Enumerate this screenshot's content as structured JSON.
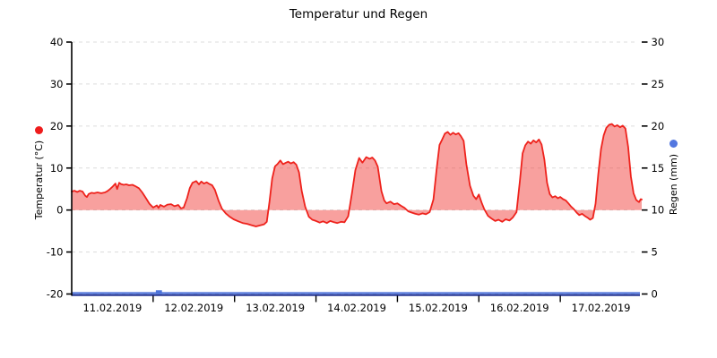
{
  "title": "Temperatur und Regen",
  "chart_data": {
    "type": "area",
    "title": "Temperatur und Regen",
    "background": "#ffffff",
    "grid_color": "#dcdcdc",
    "axis_color": "#000000",
    "x_axis": {
      "unit": "hours since 11.02.2019 00:00",
      "range_hours": [
        0,
        168
      ],
      "days": 7,
      "day_labels": [
        "11.02.2019",
        "12.02.2019",
        "13.02.2019",
        "14.02.2019",
        "15.02.2019",
        "16.02.2019",
        "17.02.2019"
      ]
    },
    "y_left": {
      "label": "Temperatur (°C)",
      "min": -20,
      "max": 40,
      "ticks": [
        40,
        30,
        20,
        10,
        0,
        -10,
        -20
      ],
      "marker_color": "#ee1c1c"
    },
    "y_right": {
      "label": "Regen (mm)",
      "min": 0,
      "max": 30,
      "ticks": [
        30,
        25,
        20,
        15,
        10,
        5,
        0
      ],
      "marker_color": "#5377e0"
    },
    "series": [
      {
        "name": "Temperatur",
        "axis": "left",
        "render": "area-line",
        "line_color": "#ee221c",
        "fill_color": "rgba(240,45,40,0.45)",
        "baseline_value": 0,
        "points": [
          [
            0,
            4.4
          ],
          [
            0.8,
            4.6
          ],
          [
            1.6,
            4.3
          ],
          [
            2.4,
            4.6
          ],
          [
            3.2,
            4.4
          ],
          [
            4,
            3.4
          ],
          [
            4.5,
            3.1
          ],
          [
            5,
            3.8
          ],
          [
            5.8,
            4.1
          ],
          [
            6.6,
            4
          ],
          [
            7.6,
            4.2
          ],
          [
            8.7,
            4
          ],
          [
            9.8,
            4.2
          ],
          [
            10.5,
            4.5
          ],
          [
            11.3,
            5
          ],
          [
            12.1,
            5.6
          ],
          [
            12.9,
            6.3
          ],
          [
            13.4,
            5
          ],
          [
            14,
            6.5
          ],
          [
            14.5,
            6.2
          ],
          [
            15.3,
            6
          ],
          [
            16.1,
            6.1
          ],
          [
            16.9,
            5.9
          ],
          [
            17.9,
            6
          ],
          [
            18.7,
            5.7
          ],
          [
            19.8,
            5.2
          ],
          [
            20.8,
            4.2
          ],
          [
            21.9,
            2.8
          ],
          [
            22.9,
            1.5
          ],
          [
            24,
            0.6
          ],
          [
            25.1,
            1.1
          ],
          [
            25.6,
            0.5
          ],
          [
            26.1,
            1.2
          ],
          [
            27.2,
            0.8
          ],
          [
            28.2,
            1.3
          ],
          [
            29.3,
            1.4
          ],
          [
            30.3,
            0.9
          ],
          [
            31.4,
            1.2
          ],
          [
            32.2,
            0.4
          ],
          [
            33,
            0.6
          ],
          [
            34,
            2.8
          ],
          [
            34.8,
            5.2
          ],
          [
            35.6,
            6.5
          ],
          [
            36.7,
            6.9
          ],
          [
            37.5,
            6.1
          ],
          [
            38.2,
            6.8
          ],
          [
            39,
            6.3
          ],
          [
            39.8,
            6.6
          ],
          [
            40.6,
            6.2
          ],
          [
            41.4,
            5.9
          ],
          [
            42.2,
            4.8
          ],
          [
            43.3,
            2.2
          ],
          [
            44.3,
            0.3
          ],
          [
            45.4,
            -0.8
          ],
          [
            46.4,
            -1.5
          ],
          [
            47.7,
            -2.2
          ],
          [
            49.1,
            -2.7
          ],
          [
            50.4,
            -3.1
          ],
          [
            51.7,
            -3.3
          ],
          [
            53,
            -3.6
          ],
          [
            54.3,
            -3.9
          ],
          [
            55.7,
            -3.6
          ],
          [
            56.7,
            -3.4
          ],
          [
            57.5,
            -2.8
          ],
          [
            58.3,
            2
          ],
          [
            59.1,
            7.5
          ],
          [
            59.9,
            10.4
          ],
          [
            60.7,
            11
          ],
          [
            61.5,
            11.8
          ],
          [
            62.3,
            10.9
          ],
          [
            63,
            11.2
          ],
          [
            63.8,
            11.5
          ],
          [
            64.6,
            11.1
          ],
          [
            65.4,
            11.4
          ],
          [
            66.2,
            10.8
          ],
          [
            67,
            9
          ],
          [
            67.8,
            4.5
          ],
          [
            68.8,
            0.8
          ],
          [
            69.9,
            -1.6
          ],
          [
            70.9,
            -2.3
          ],
          [
            72,
            -2.6
          ],
          [
            73.1,
            -3
          ],
          [
            74.1,
            -2.7
          ],
          [
            75.2,
            -3.1
          ],
          [
            76.2,
            -2.6
          ],
          [
            77.3,
            -2.9
          ],
          [
            78.3,
            -3.1
          ],
          [
            79.4,
            -2.8
          ],
          [
            80.4,
            -2.9
          ],
          [
            81.5,
            -1.5
          ],
          [
            82.6,
            4
          ],
          [
            83.6,
            9.5
          ],
          [
            84.7,
            12.4
          ],
          [
            85.7,
            11.3
          ],
          [
            86.8,
            12.6
          ],
          [
            87.8,
            12.2
          ],
          [
            88.6,
            12.5
          ],
          [
            89.4,
            11.8
          ],
          [
            90.2,
            10.3
          ],
          [
            91.3,
            4.5
          ],
          [
            92.1,
            2.3
          ],
          [
            92.8,
            1.6
          ],
          [
            93.9,
            2
          ],
          [
            95,
            1.4
          ],
          [
            96,
            1.6
          ],
          [
            97.1,
            1
          ],
          [
            98.1,
            0.5
          ],
          [
            99.2,
            -0.3
          ],
          [
            100.2,
            -0.6
          ],
          [
            101.3,
            -0.9
          ],
          [
            102.3,
            -1.1
          ],
          [
            103.4,
            -0.8
          ],
          [
            104.4,
            -1
          ],
          [
            105.5,
            -0.5
          ],
          [
            106.6,
            2.5
          ],
          [
            107.6,
            10
          ],
          [
            108.4,
            15.5
          ],
          [
            109.2,
            16.8
          ],
          [
            110,
            18.2
          ],
          [
            110.8,
            18.6
          ],
          [
            111.6,
            17.9
          ],
          [
            112.4,
            18.4
          ],
          [
            113.2,
            18
          ],
          [
            114,
            18.3
          ],
          [
            114.7,
            17.6
          ],
          [
            115.5,
            16.5
          ],
          [
            116.3,
            11
          ],
          [
            117.4,
            5.8
          ],
          [
            118.4,
            3.4
          ],
          [
            119.2,
            2.6
          ],
          [
            120,
            3.7
          ],
          [
            120.8,
            1.8
          ],
          [
            121.6,
            0.2
          ],
          [
            122.7,
            -1.4
          ],
          [
            123.7,
            -2
          ],
          [
            124.8,
            -2.6
          ],
          [
            125.8,
            -2.3
          ],
          [
            126.9,
            -2.8
          ],
          [
            127.9,
            -2.2
          ],
          [
            129,
            -2.5
          ],
          [
            130,
            -1.8
          ],
          [
            131.1,
            -0.5
          ],
          [
            132.1,
            7
          ],
          [
            132.9,
            13.5
          ],
          [
            133.7,
            15.4
          ],
          [
            134.5,
            16.3
          ],
          [
            135.3,
            15.8
          ],
          [
            136.1,
            16.6
          ],
          [
            136.9,
            16.1
          ],
          [
            137.7,
            16.8
          ],
          [
            138.5,
            15.6
          ],
          [
            139.3,
            12
          ],
          [
            140.1,
            6.5
          ],
          [
            140.9,
            3.8
          ],
          [
            141.7,
            3
          ],
          [
            142.5,
            3.3
          ],
          [
            143.3,
            2.8
          ],
          [
            144,
            3.1
          ],
          [
            144.8,
            2.6
          ],
          [
            145.6,
            2.3
          ],
          [
            146.4,
            1.6
          ],
          [
            147.2,
            0.8
          ],
          [
            148,
            0.2
          ],
          [
            148.8,
            -0.6
          ],
          [
            149.6,
            -1.2
          ],
          [
            150.4,
            -0.9
          ],
          [
            151.2,
            -1.4
          ],
          [
            152,
            -1.8
          ],
          [
            152.8,
            -2.3
          ],
          [
            153.6,
            -1.9
          ],
          [
            154.4,
            1.5
          ],
          [
            155.2,
            8.5
          ],
          [
            156,
            14.5
          ],
          [
            156.8,
            17.8
          ],
          [
            157.6,
            19.6
          ],
          [
            158.4,
            20.3
          ],
          [
            159.2,
            20.5
          ],
          [
            160,
            19.9
          ],
          [
            160.8,
            20.2
          ],
          [
            161.6,
            19.7
          ],
          [
            162.4,
            20.1
          ],
          [
            163.2,
            19.4
          ],
          [
            164,
            15
          ],
          [
            164.8,
            8
          ],
          [
            165.6,
            4
          ],
          [
            166.4,
            2.4
          ],
          [
            167.2,
            1.9
          ],
          [
            167.7,
            2.6
          ],
          [
            168,
            2.5
          ]
        ]
      },
      {
        "name": "Regen",
        "axis": "right",
        "render": "bar",
        "bar_color": "#4d73da",
        "baseline_line_color": "#4d73da",
        "baseline_dark_color": "#1e2f8f",
        "bar_width_hours": 1.8,
        "points": [
          [
            25.7,
            0.45
          ]
        ]
      }
    ]
  }
}
